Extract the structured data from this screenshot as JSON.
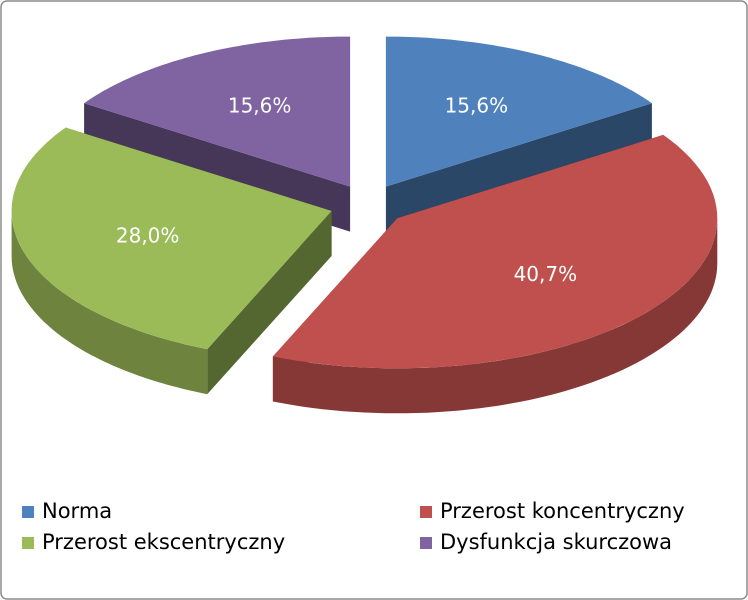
{
  "chart_data": {
    "type": "pie3d",
    "categories": [
      "Norma",
      "Przerost koncentryczny",
      "Przerost ekscentryczny",
      "Dysfunkcja skurczowa"
    ],
    "values": [
      15.6,
      40.7,
      28.0,
      15.6
    ],
    "value_labels": [
      "15,6%",
      "40,7%",
      "28,0%",
      "15,6%"
    ],
    "colors": [
      "#4f81bd",
      "#c0504d",
      "#9bbb59",
      "#8064a2"
    ]
  }
}
